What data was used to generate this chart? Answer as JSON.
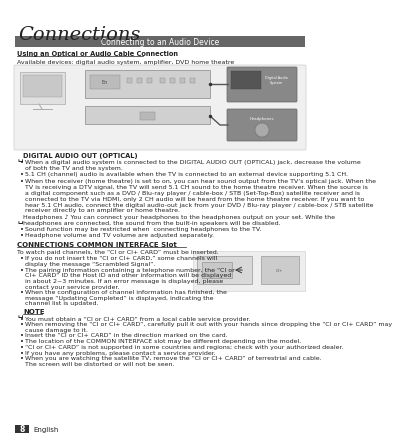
{
  "title": "Connections",
  "section_header": "Connecting to an Audio Device",
  "section_header_bg": "#666666",
  "section_header_color": "#ffffff",
  "underline_section": "Using an Optical or Audio Cable Connection",
  "available_devices": "Available devices: digital audio system, amplifier, DVD home theatre",
  "bg_color": "#ffffff",
  "text_color": "#222222",
  "diagram_bg": "#f0f0f0",
  "diagram_border": "#cccccc",
  "body_font_size": 4.5,
  "title_font_size": 14,
  "connections_header": "CONNECTIONS COMMON INTERFACE Slot",
  "connections_text": "To watch paid channels, the “CI or CI+ CARD” must be inserted.",
  "connections_bullets": [
    "If you do not insert the “CI or CI+ CARD,” some channels will\ndisplay the message “Scrambled Signal”.",
    "The pairing information containing a telephone number, the “CI or\nCI+ CARD” ID the Host ID and other information will be displayed\nin about 2~3 minutes. If an error message is displayed, please\ncontact your service provider.",
    "When the configuration of channel information has finished, the\nmessage “Updating Completed” is displayed, indicating the\nchannel list is updated."
  ],
  "note_header": "NOTE",
  "note_bullets": [
    "You must obtain a “CI or CI+ CARD” from a local cable service provider.",
    "When removing the “CI or CI+ CARD”, carefully pull it out with your hands since dropping the “CI or CI+ CARD” may\ncause damage to it.",
    "Insert the “CI or CI+ CARD” in the direction marked on the card.",
    "The location of the COMMON INTERFACE slot may be different depending on the model.",
    "“CI or CI+ CARD” is not supported in some countries and regions; check with your authorized dealer.",
    "If you have any problems, please contact a service provider.",
    "When you are watching the satellite TV, remove the “CI or CI+ CARD” of terrestrial and cable.\nThe screen will be distorted or will not be seen."
  ],
  "page_number": "8",
  "page_lang": "English",
  "digital_audio_label": "DIGITAL AUDIO OUT (OPTICAL)",
  "digital_audio_bullets": [
    "When a digital audio system is connected to the DIGITAL AUDIO OUT (OPTICAL) jack, decrease the volume\nof both the TV and the system.",
    "5.1 CH (channel) audio is available when the TV is connected to an external device supporting 5.1 CH.",
    "When the receiver (home theatre) is set to on, you can hear sound output from the TV’s optical jack. When the\nTV is receiving a DTV signal, the TV will send 5.1 CH sound to the home theatre receiver. When the source is\na digital component such as a DVD / Blu-ray player / cable-box / STB (Set-Top-Box) satellite receiver and is\nconnected to the TV via HDMI, only 2 CH audio will be heard from the home theatre receiver. If you want to\nhear 5.1 CH audio, connect the digital audio-out jack from your DVD / Blu-ray player / cable-box / STB satellite\nreceiver directly to an amplifier or home theatre."
  ],
  "headphones_label": "Headphones ♪ You can connect your headphones to the headphones output on your set. While the\nheadphones are connected, the sound from the built-in speakers will be disabled.",
  "headphones_bullets": [
    "Sound function may be restricted when  connecting headphones to the TV.",
    "Headphone volume and TV volume are adjusted separately."
  ]
}
